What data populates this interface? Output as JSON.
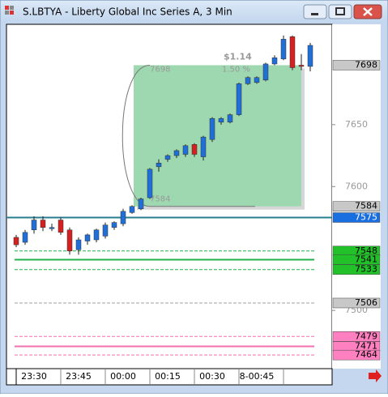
{
  "window": {
    "title": "S.LBTYA - Liberty Global Inc Series A, 3 Min"
  },
  "chart_data": {
    "type": "candlestick",
    "categories": [
      null,
      null,
      "23:30",
      null,
      null,
      null,
      null,
      "23:45",
      null,
      null,
      null,
      null,
      "00:00",
      null,
      null,
      null,
      null,
      "00:15",
      null,
      null,
      null,
      null,
      "00:30",
      null,
      null,
      null,
      null,
      "8-00:45",
      null,
      null,
      null,
      null,
      null,
      null
    ],
    "open": [
      7559,
      7555,
      7565,
      7573,
      7567,
      7573,
      7565,
      7549,
      7556,
      7557,
      7560,
      7567,
      7570,
      7579,
      7582,
      7591,
      7616,
      7622,
      7625,
      7626,
      7634,
      7624,
      7638,
      7652,
      7652,
      7658,
      7683,
      7684,
      7686,
      7699,
      7703,
      7721,
      7698,
      7697
    ],
    "high": [
      7561,
      7565,
      7576,
      7576,
      7570,
      7575,
      7567,
      7559,
      7562,
      7566,
      7571,
      7572,
      7582,
      7585,
      7591,
      7615,
      7622,
      7626,
      7630,
      7634,
      7635,
      7641,
      7656,
      7656,
      7659,
      7684,
      7689,
      7689,
      7700,
      7706,
      7722,
      7722,
      7707,
      7716
    ],
    "low": [
      7551,
      7553,
      7562,
      7564,
      7564,
      7561,
      7545,
      7545,
      7553,
      7555,
      7558,
      7565,
      7568,
      7578,
      7581,
      7590,
      7612,
      7620,
      7623,
      7624,
      7624,
      7621,
      7636,
      7650,
      7651,
      7657,
      7682,
      7683,
      7685,
      7698,
      7702,
      7694,
      7694,
      7693
    ],
    "close": [
      7553,
      7563,
      7573,
      7567,
      7567,
      7563,
      7548,
      7557,
      7561,
      7565,
      7569,
      7571,
      7580,
      7584,
      7590,
      7614,
      7619,
      7625,
      7629,
      7633,
      7626,
      7640,
      7655,
      7655,
      7658,
      7683,
      7688,
      7688,
      7699,
      7704,
      7719,
      7696,
      7697,
      7714
    ],
    "up_color": "#1f6fd6",
    "down_color": "#d42020",
    "ylim": [
      7453,
      7731
    ],
    "yticks": [
      7650,
      7600,
      7500
    ],
    "annotation": {
      "top": 7698,
      "bottom": 7584,
      "change": "$1.14",
      "percent": "1.50 %",
      "color": "#9ed8b0"
    },
    "levels": [
      {
        "value": 7698,
        "color": "#c8c8c8"
      },
      {
        "value": 7584,
        "color": "#c8c8c8"
      },
      {
        "value": 7575,
        "color": "#1a6fe0",
        "line": "solid",
        "line_color": "#2a7c8f"
      },
      {
        "value": 7548,
        "color": "#22c12a",
        "line": "dashed",
        "line_color": "#22b14c"
      },
      {
        "value": 7541,
        "color": "#22c12a",
        "line": "solid",
        "line_color": "#22b14c"
      },
      {
        "value": 7533,
        "color": "#22c12a",
        "line": "dashed",
        "line_color": "#22b14c"
      },
      {
        "value": 7506,
        "color": "#c8c8c8",
        "line": "dashed",
        "line_color": "#a0a0a0"
      },
      {
        "value": 7479,
        "color": "#ff80c0",
        "line": "dashed",
        "line_color": "#f070b0"
      },
      {
        "value": 7471,
        "color": "#ff80c0",
        "line": "solid",
        "line_color": "#f070b0"
      },
      {
        "value": 7464,
        "color": "#ff80c0",
        "line": "dashed",
        "line_color": "#f070b0"
      }
    ]
  }
}
